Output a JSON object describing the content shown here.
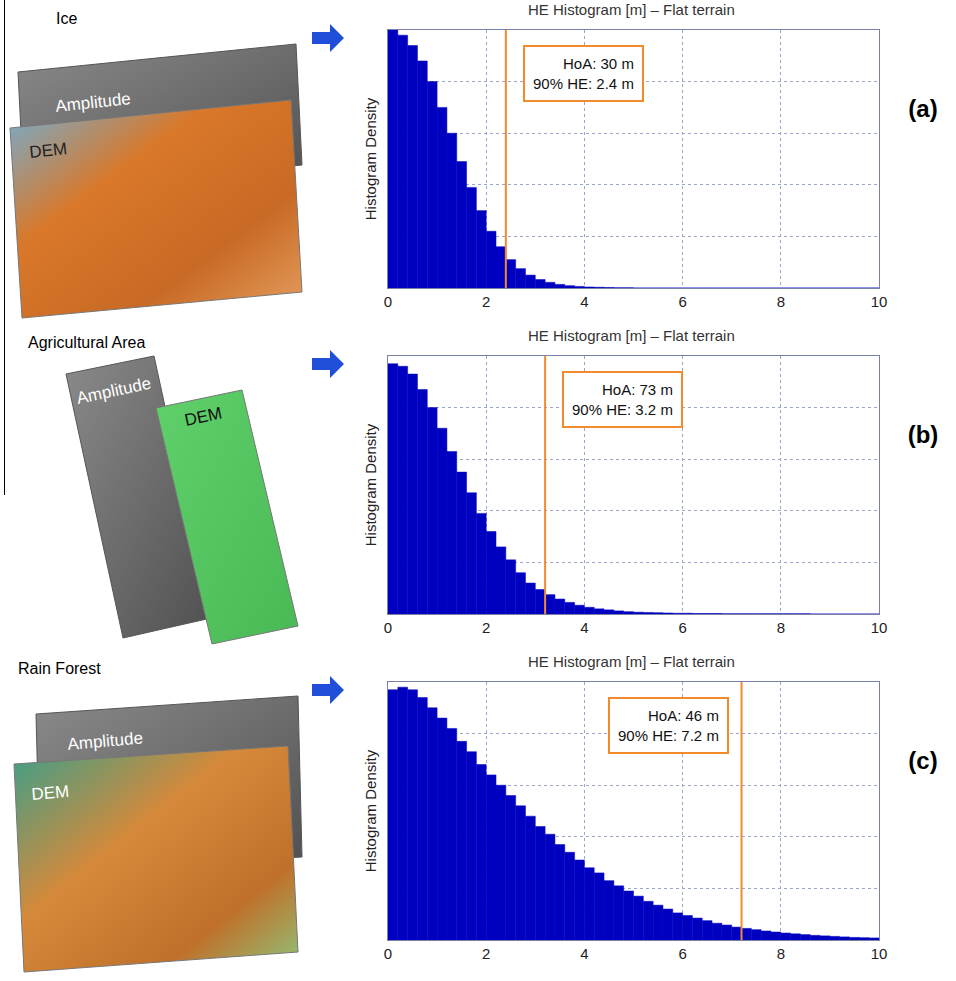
{
  "chart_data": [
    {
      "type": "histogram",
      "title": "HE Histogram [m] – Flat terrain",
      "panel_label": "(a)",
      "scene": "Ice",
      "layers": [
        "Amplitude",
        "DEM"
      ],
      "ylabel": "Histogram Density",
      "annotations": [
        "HoA: 30 m",
        "90% HE: 2.4 m"
      ],
      "quantile_90": 2.4,
      "xlim": [
        0,
        10
      ],
      "xticks": [
        0,
        2,
        4,
        6,
        8,
        10
      ],
      "ylim": [
        0,
        1
      ],
      "yticks": [
        0,
        0.2,
        0.4,
        0.6,
        0.8,
        1
      ],
      "tick_labels": "x",
      "grid": true,
      "color": "#0000c0",
      "bins": [
        0,
        0.2,
        0.4,
        0.6,
        0.8,
        1,
        1.2,
        1.4,
        1.6,
        1.8,
        2,
        2.2,
        2.4,
        2.6,
        2.8,
        3,
        3.2,
        3.4,
        3.6,
        3.8,
        4,
        4.2,
        4.4,
        4.6,
        4.8,
        5,
        5.2,
        5.4,
        5.6,
        5.8,
        6,
        6.2,
        6.4,
        6.6,
        6.8,
        7,
        7.2,
        7.4,
        7.6,
        7.8,
        8,
        8.2,
        8.4,
        8.6,
        8.8,
        9,
        9.2,
        9.4,
        9.6,
        9.8,
        10
      ],
      "counts": [
        1.0,
        0.98,
        0.94,
        0.88,
        0.8,
        0.7,
        0.6,
        0.49,
        0.39,
        0.3,
        0.22,
        0.16,
        0.11,
        0.075,
        0.05,
        0.033,
        0.022,
        0.014,
        0.009,
        0.006,
        0.004,
        0.003,
        0.002,
        0.001,
        0.001,
        0,
        0,
        0,
        0,
        0,
        0,
        0,
        0,
        0,
        0,
        0,
        0,
        0,
        0,
        0,
        0,
        0,
        0,
        0,
        0,
        0,
        0,
        0,
        0,
        0
      ]
    },
    {
      "type": "histogram",
      "title": "HE Histogram [m] – Flat terrain",
      "panel_label": "(b)",
      "scene": "Agricultural Area",
      "layers": [
        "Amplitude",
        "DEM"
      ],
      "ylabel": "Histogram Density",
      "annotations": [
        "HoA: 73 m",
        "90% HE: 3.2 m"
      ],
      "quantile_90": 3.2,
      "xlim": [
        0,
        10
      ],
      "xticks": [
        0,
        2,
        4,
        6,
        8,
        10
      ],
      "ylim": [
        0,
        1
      ],
      "yticks": [
        0,
        0.2,
        0.4,
        0.6,
        0.8,
        1
      ],
      "tick_labels": "x",
      "grid": true,
      "color": "#0000c0",
      "bins": [
        0,
        0.2,
        0.4,
        0.6,
        0.8,
        1,
        1.2,
        1.4,
        1.6,
        1.8,
        2,
        2.2,
        2.4,
        2.6,
        2.8,
        3,
        3.2,
        3.4,
        3.6,
        3.8,
        4,
        4.2,
        4.4,
        4.6,
        4.8,
        5,
        5.2,
        5.4,
        5.6,
        5.8,
        6,
        6.2,
        6.4,
        6.6,
        6.8,
        7,
        7.2,
        7.4,
        7.6,
        7.8,
        8,
        8.2,
        8.4,
        8.6,
        8.8,
        9,
        9.2,
        9.4,
        9.6,
        9.8,
        10
      ],
      "counts": [
        0.97,
        0.96,
        0.93,
        0.87,
        0.8,
        0.72,
        0.63,
        0.55,
        0.47,
        0.39,
        0.32,
        0.26,
        0.21,
        0.16,
        0.12,
        0.095,
        0.075,
        0.058,
        0.045,
        0.034,
        0.026,
        0.02,
        0.016,
        0.012,
        0.009,
        0.007,
        0.006,
        0.005,
        0.004,
        0.003,
        0.003,
        0.002,
        0.002,
        0.002,
        0.001,
        0.001,
        0.001,
        0.001,
        0.001,
        0.001,
        0.001,
        0.001,
        0.001,
        0,
        0,
        0,
        0,
        0,
        0,
        0
      ]
    },
    {
      "type": "histogram",
      "title": "HE Histogram [m] – Flat terrain",
      "panel_label": "(c)",
      "scene": "Rain Forest",
      "layers": [
        "Amplitude",
        "DEM"
      ],
      "ylabel": "Histogram Density",
      "annotations": [
        "HoA: 46 m",
        "90% HE: 7.2 m"
      ],
      "quantile_90": 7.2,
      "xlim": [
        0,
        10
      ],
      "xticks": [
        0,
        2,
        4,
        6,
        8,
        10
      ],
      "ylim": [
        0,
        1
      ],
      "yticks": [
        0,
        0.2,
        0.4,
        0.6,
        0.8,
        1
      ],
      "tick_labels": "x",
      "grid": true,
      "color": "#0000c0",
      "bins": [
        0,
        0.2,
        0.4,
        0.6,
        0.8,
        1,
        1.2,
        1.4,
        1.6,
        1.8,
        2,
        2.2,
        2.4,
        2.6,
        2.8,
        3,
        3.2,
        3.4,
        3.6,
        3.8,
        4,
        4.2,
        4.4,
        4.6,
        4.8,
        5,
        5.2,
        5.4,
        5.6,
        5.8,
        6,
        6.2,
        6.4,
        6.6,
        6.8,
        7,
        7.2,
        7.4,
        7.6,
        7.8,
        8,
        8.2,
        8.4,
        8.6,
        8.8,
        9,
        9.2,
        9.4,
        9.6,
        9.8,
        10
      ],
      "counts": [
        0.97,
        0.98,
        0.97,
        0.94,
        0.9,
        0.86,
        0.82,
        0.77,
        0.73,
        0.68,
        0.64,
        0.6,
        0.56,
        0.52,
        0.48,
        0.44,
        0.41,
        0.37,
        0.34,
        0.31,
        0.28,
        0.26,
        0.23,
        0.21,
        0.19,
        0.17,
        0.15,
        0.135,
        0.12,
        0.105,
        0.095,
        0.085,
        0.075,
        0.065,
        0.058,
        0.05,
        0.045,
        0.04,
        0.035,
        0.031,
        0.027,
        0.024,
        0.021,
        0.018,
        0.016,
        0.014,
        0.012,
        0.01,
        0.009,
        0.008
      ]
    }
  ]
}
